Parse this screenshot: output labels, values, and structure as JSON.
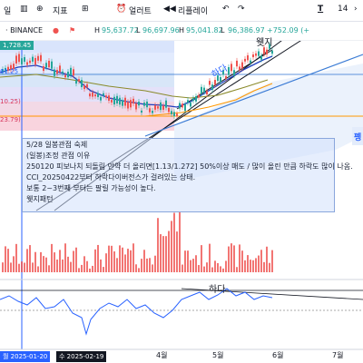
{
  "toolbar": {
    "interval": "일",
    "indicators_label": "지표",
    "alert_label": "얼러트",
    "replay_label": "리플레이",
    "font_size": "14"
  },
  "header": {
    "symbol": "· BINANCE",
    "price_tag": "1,728.45",
    "h_label": "H",
    "h_value": "95,637.72",
    "l_label": "L",
    "l_value": "96,697.96",
    "c_label": "H",
    "c_value": "95,041.82",
    "o_label": "L",
    "o_value": "96,386.97",
    "change": "+752.09 (+"
  },
  "chart_labels": {
    "wedge_top": "웻지",
    "trend_up": "하다",
    "lower_label": "하다",
    "right_edge": "펭",
    "fib_a": "61.25",
    "fib_b": "10.25)",
    "fib_c": "23.79)"
  },
  "note": {
    "lines": [
      "5/28 일봉관점 숙제",
      "(일봉)조정 관점 이유",
      "250120 피보나치 되돌림 만약 더 올리면[1.13/1.272] 50%이상 매도 / 많이 올린 만큼 하락도 많이 나옴.",
      "CCI_20250422부터 하락다이버전스가 걸려있는 상태.",
      "보통 2~3번째 부터는 팔릴 가능성이 높다.",
      "웻지패턴"
    ]
  },
  "axis": {
    "x_labels": [
      "4월",
      "5월",
      "6월",
      "7월"
    ],
    "date_tag_1": "월 2025-01-20",
    "date_tag_2": "수 2025-02-19"
  },
  "colors": {
    "candle_up": "#26a69a",
    "candle_down": "#ef5350",
    "ma": "#1f3fbf",
    "fib_blue": "#c9d8fb",
    "fib_pink": "#f7c9d6",
    "volume": "#ef5350",
    "date_tag": "#2962ff"
  }
}
